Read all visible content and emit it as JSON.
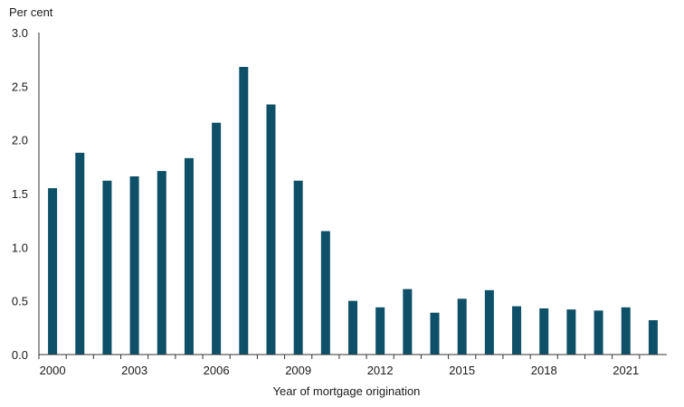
{
  "chart_data": {
    "type": "bar",
    "ylabel": "Per cent",
    "xlabel": "Year of mortgage origination",
    "ylim": [
      0,
      3.0
    ],
    "yticks": [
      "0.0",
      "0.5",
      "1.0",
      "1.5",
      "2.0",
      "2.5",
      "3.0"
    ],
    "xticks": [
      "2000",
      "2003",
      "2006",
      "2009",
      "2012",
      "2015",
      "2018",
      "2021"
    ],
    "grid": false,
    "categories": [
      2000,
      2001,
      2002,
      2003,
      2004,
      2005,
      2006,
      2007,
      2008,
      2009,
      2010,
      2011,
      2012,
      2013,
      2014,
      2015,
      2016,
      2017,
      2018,
      2019,
      2020,
      2021,
      2022
    ],
    "values": [
      1.55,
      1.88,
      1.62,
      1.66,
      1.71,
      1.83,
      2.16,
      2.68,
      2.33,
      1.62,
      1.15,
      0.5,
      0.44,
      0.61,
      0.39,
      0.52,
      0.6,
      0.45,
      0.43,
      0.42,
      0.41,
      0.44,
      0.32
    ],
    "bar_color": "#0d5068"
  }
}
